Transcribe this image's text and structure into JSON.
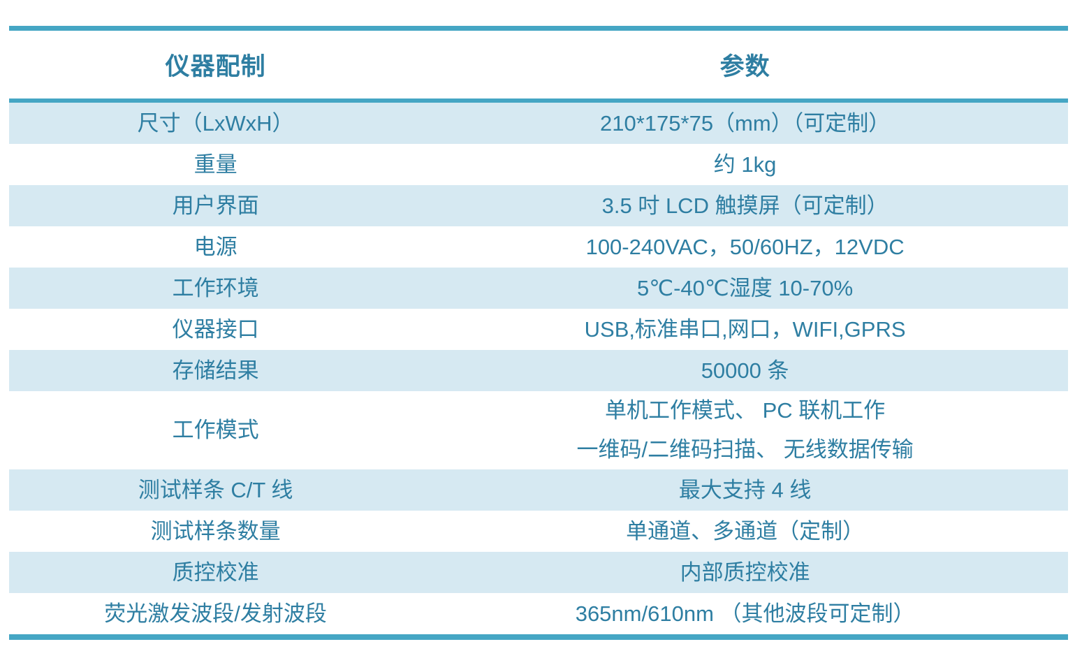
{
  "table": {
    "header": {
      "col1": "仪器配制",
      "col2": "参数"
    },
    "rows": [
      {
        "label": "尺寸（LxWxH）",
        "value": "210*175*75（mm）（可定制）"
      },
      {
        "label": "重量",
        "value": "约 1kg"
      },
      {
        "label": "用户界面",
        "value": "3.5 吋 LCD 触摸屏（可定制）"
      },
      {
        "label": "电源",
        "value": "100-240VAC，50/60HZ，12VDC"
      },
      {
        "label": "工作环境",
        "value": "5℃-40℃湿度  10-70%"
      },
      {
        "label": "仪器接口",
        "value": "USB,标准串口,网口，WIFI,GPRS"
      },
      {
        "label": "存储结果",
        "value": "50000 条"
      },
      {
        "label": "工作模式",
        "value_lines": [
          "单机工作模式、 PC 联机工作",
          "一维码/二维码扫描、 无线数据传输"
        ]
      },
      {
        "label": "测试样条 C/T 线",
        "value": "最大支持 4 线"
      },
      {
        "label": "测试样条数量",
        "value": "单通道、多通道（定制）"
      },
      {
        "label": "质控校准",
        "value": "内部质控校准"
      },
      {
        "label": "荧光激发波段/发射波段",
        "value": "365nm/610nm （其他波段可定制）"
      }
    ]
  },
  "colors": {
    "accent_teal": "#45A6C4",
    "text_teal": "#2E7EA2",
    "row_shade_blue": "#D6E9F2"
  }
}
